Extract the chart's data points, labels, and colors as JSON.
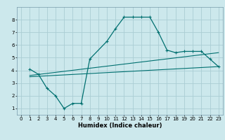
{
  "title": "",
  "xlabel": "Humidex (Indice chaleur)",
  "bg_color": "#cce8ec",
  "grid_color": "#aacdd4",
  "line_color": "#007070",
  "xlim": [
    -0.5,
    23.5
  ],
  "ylim": [
    0.5,
    9.0
  ],
  "xticks": [
    0,
    1,
    2,
    3,
    4,
    5,
    6,
    7,
    8,
    9,
    10,
    11,
    12,
    13,
    14,
    15,
    16,
    17,
    18,
    19,
    20,
    21,
    22,
    23
  ],
  "yticks": [
    1,
    2,
    3,
    4,
    5,
    6,
    7,
    8
  ],
  "line1_x": [
    1,
    2,
    3,
    4,
    5,
    6,
    7,
    8,
    10,
    11,
    12,
    13,
    14,
    15,
    16,
    17,
    18,
    19,
    20,
    21,
    22,
    23
  ],
  "line1_y": [
    4.1,
    3.7,
    2.6,
    2.0,
    1.0,
    1.4,
    1.4,
    4.9,
    6.3,
    7.3,
    8.2,
    8.2,
    8.2,
    8.2,
    7.0,
    5.6,
    5.4,
    5.5,
    5.5,
    5.5,
    4.9,
    4.3
  ],
  "line2_x": [
    1,
    23
  ],
  "line2_y": [
    3.5,
    4.3
  ],
  "line3_x": [
    1,
    23
  ],
  "line3_y": [
    3.6,
    5.4
  ],
  "xlabel_fontsize": 6.0,
  "tick_fontsize": 5.0
}
